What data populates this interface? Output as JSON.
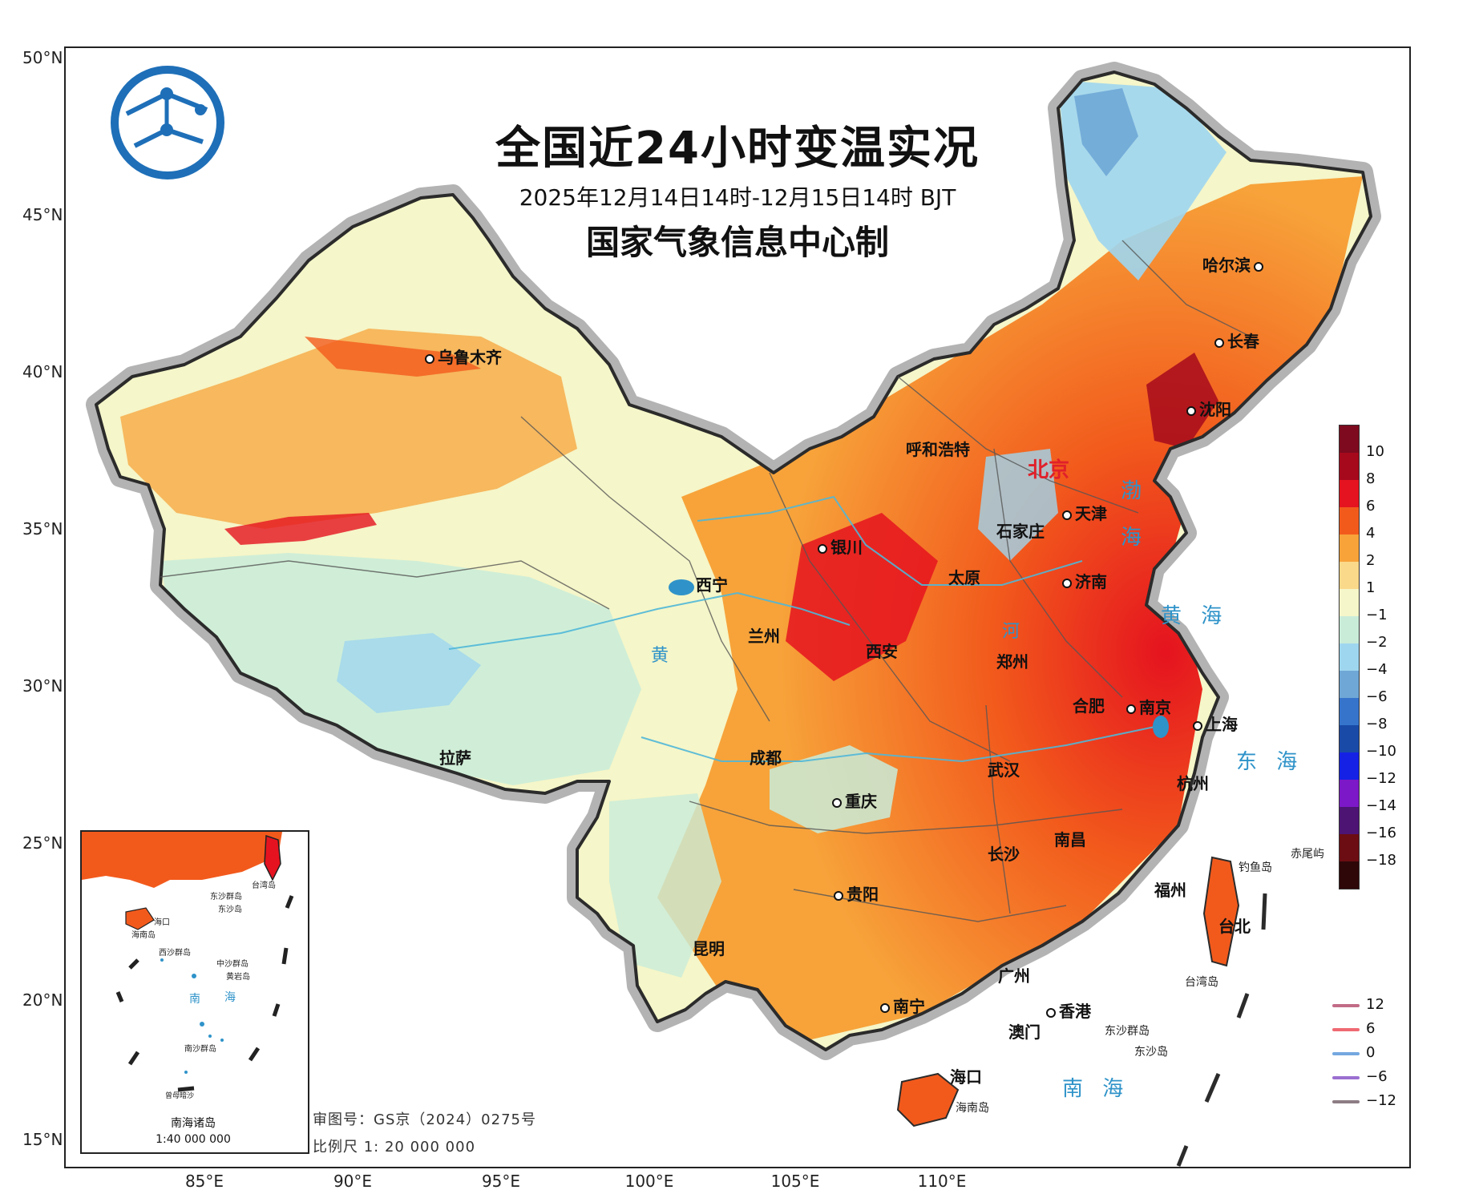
{
  "map": {
    "title": "全国近24小时变温实况",
    "subtitle": "2025年12月14日14时-12月15日14时 BJT",
    "producer": "国家气象信息中心制",
    "review_number": "审图号：GS京（2024）0275号",
    "scale": "比例尺 1: 20 000 000",
    "latitude_labels": [
      "50°N",
      "45°N",
      "40°N",
      "35°N",
      "30°N",
      "25°N",
      "20°N",
      "15°N"
    ],
    "longitude_labels": [
      "85°E",
      "90°E",
      "95°E",
      "100°E",
      "105°E",
      "110°E"
    ]
  },
  "cities": {
    "urumqi": "乌鲁木齐",
    "harbin": "哈尔滨",
    "changchun": "长春",
    "shenyang": "沈阳",
    "hohhot": "呼和浩特",
    "beijing": "北京",
    "tianjin": "天津",
    "shijiazhuang": "石家庄",
    "yinchuan": "银川",
    "taiyuan": "太原",
    "jinan": "济南",
    "xining": "西宁",
    "lanzhou": "兰州",
    "xian": "西安",
    "zhengzhou": "郑州",
    "hefei": "合肥",
    "nanjing": "南京",
    "shanghai": "上海",
    "lhasa": "拉萨",
    "chengdu": "成都",
    "wuhan": "武汉",
    "hangzhou": "杭州",
    "chongqing": "重庆",
    "changsha": "长沙",
    "nanchang": "南昌",
    "guiyang": "贵阳",
    "fuzhou": "福州",
    "taipei": "台北",
    "kunming": "昆明",
    "guangzhou": "广州",
    "nanning": "南宁",
    "hongkong": "香港",
    "macau": "澳门",
    "haikou": "海口"
  },
  "places": {
    "bohai_1": "渤",
    "bohai_2": "海",
    "yellow_sea": "黄 海",
    "east_sea": "东 海",
    "south_sea": "南 海",
    "diaoyu": "钓鱼岛",
    "chiwei": "赤尾屿",
    "taiwan": "台湾岛",
    "dongsha_islands": "东沙群岛",
    "dongsha": "东沙岛",
    "hainan": "海南岛",
    "river_huang": "黄",
    "river_he": "河"
  },
  "inset": {
    "caption_1": "南海诸岛",
    "caption_2": "1:40 000 000",
    "labels": [
      "台湾岛",
      "东沙群岛",
      "东沙岛",
      "海口",
      "海南岛",
      "西沙群岛",
      "中沙群岛",
      "黄岩岛",
      "南",
      "海",
      "南沙群岛",
      "曾母暗沙"
    ]
  },
  "color_legend": {
    "labels": [
      "10",
      "8",
      "6",
      "4",
      "2",
      "1",
      "−1",
      "−2",
      "−4",
      "−6",
      "−8",
      "−10",
      "−12",
      "−14",
      "−16",
      "−18"
    ],
    "colors": [
      "#7d0a1e",
      "#a6091c",
      "#e5131f",
      "#f25a1c",
      "#f7a33a",
      "#fbd98a",
      "#f5f6c9",
      "#c9ecd9",
      "#9fd6ef",
      "#6fa7d6",
      "#3674cc",
      "#1a4aa8",
      "#1522e6",
      "#7c18c7",
      "#4d1474",
      "#6b0d12",
      "#2e0709"
    ]
  },
  "line_legend": {
    "labels": [
      "12",
      "6",
      "0",
      "−6",
      "−12"
    ],
    "colors": [
      "#c26b87",
      "#ef6a73",
      "#74a8e0",
      "#9b6fd1",
      "#8d7d84"
    ]
  }
}
